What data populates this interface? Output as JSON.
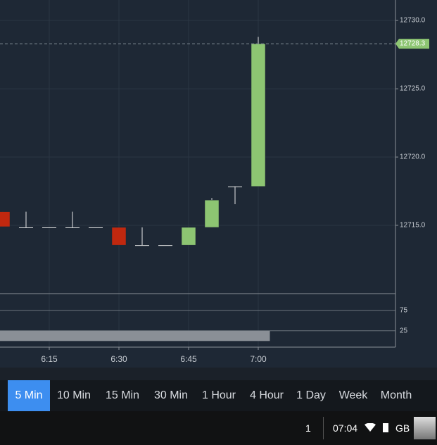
{
  "chart_data": [
    {
      "type": "candlestick",
      "categories": [
        null,
        null,
        "6:15",
        null,
        null,
        "6:30",
        null,
        null,
        "6:45",
        null,
        null,
        "7:00"
      ],
      "open": [
        12716.0,
        12714.85,
        12714.85,
        12714.85,
        12714.85,
        12714.85,
        12713.55,
        12713.55,
        12713.55,
        12714.85,
        12717.85,
        12717.85
      ],
      "high": [
        12716.0,
        12716.0,
        12714.85,
        12716.0,
        12714.85,
        12714.85,
        12714.85,
        12713.55,
        12714.85,
        12717.0,
        12717.85,
        12728.8
      ],
      "low": [
        12714.9,
        12714.85,
        12714.85,
        12714.85,
        12714.85,
        12713.55,
        12713.55,
        12713.55,
        12713.55,
        12714.85,
        12716.55,
        12717.85
      ],
      "close": [
        12714.9,
        12714.85,
        12714.85,
        12714.85,
        12714.85,
        12713.55,
        12713.55,
        12713.55,
        12714.85,
        12716.85,
        12717.85,
        12728.3
      ],
      "up_color": "#8dc572",
      "down_color": "#c0280f",
      "ylim": [
        12710,
        12731.5
      ],
      "yticks": [
        {
          "value": 12715,
          "label": "12715.0"
        },
        {
          "value": 12720,
          "label": "12720.0"
        },
        {
          "value": 12725,
          "label": "12725.0"
        },
        {
          "value": 12730,
          "label": "12730.0"
        }
      ],
      "last_price": 12728.3,
      "last_price_color": "#8dc572",
      "grid": true
    },
    {
      "type": "bar",
      "values": [
        25,
        25,
        25,
        25,
        25,
        25,
        25,
        25,
        25,
        25,
        25,
        25
      ],
      "color": "#8a8f96",
      "ylim": [
        -15,
        116
      ],
      "yticks": [
        25,
        75
      ],
      "grid": true
    }
  ],
  "ui": {
    "timeframes": [
      "5 Min",
      "10 Min",
      "15 Min",
      "30 Min",
      "1 Hour",
      "4 Hour",
      "1 Day",
      "Week",
      "Month"
    ],
    "selected": 0
  },
  "status": {
    "notifications": "1",
    "time": "07:04",
    "language": "GB"
  }
}
